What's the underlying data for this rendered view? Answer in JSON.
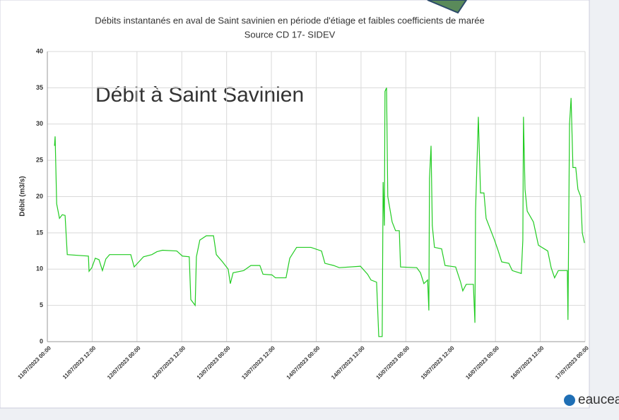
{
  "chart_data": {
    "type": "line",
    "title": "Débits instantanés en aval de Saint savinien en période d'étiage et faibles coefficients de marée",
    "subtitle": "Source CD 17- SIDEV",
    "annotation": "Débit à Saint Savinien",
    "ylabel": "Débit (m3/s)",
    "color": "#22cc22",
    "grid": true,
    "xlim": [
      "2023-07-11T00:00",
      "2023-07-17T00:00"
    ],
    "xticks": [
      {
        "value": "2023-07-11T00:00",
        "label": "11/07/2023 00:00"
      },
      {
        "value": "2023-07-11T12:00",
        "label": "11/07/2023 12:00"
      },
      {
        "value": "2023-07-12T00:00",
        "label": "12/07/2023 00:00"
      },
      {
        "value": "2023-07-12T12:00",
        "label": "12/07/2023 12:00"
      },
      {
        "value": "2023-07-13T00:00",
        "label": "13/07/2023 00:00"
      },
      {
        "value": "2023-07-13T12:00",
        "label": "13/07/2023 12:00"
      },
      {
        "value": "2023-07-14T00:00",
        "label": "14/07/2023 00:00"
      },
      {
        "value": "2023-07-14T12:00",
        "label": "14/07/2023 12:00"
      },
      {
        "value": "2023-07-15T00:00",
        "label": "15/07/2023 00:00"
      },
      {
        "value": "2023-07-15T12:00",
        "label": "15/07/2023 12:00"
      },
      {
        "value": "2023-07-16T00:00",
        "label": "16/07/2023 00:00"
      },
      {
        "value": "2023-07-16T12:00",
        "label": "16/07/2023 12:00"
      },
      {
        "value": "2023-07-17T00:00",
        "label": "17/07/2023 00:00"
      }
    ],
    "ylim": [
      0,
      40
    ],
    "yticks": [
      0,
      5,
      10,
      15,
      20,
      25,
      30,
      35,
      40
    ],
    "x": [
      "2023-07-11T01:55",
      "2023-07-11T02:05",
      "2023-07-11T02:30",
      "2023-07-11T03:15",
      "2023-07-11T04:00",
      "2023-07-11T04:45",
      "2023-07-11T05:20",
      "2023-07-11T11:00",
      "2023-07-11T11:10",
      "2023-07-11T11:55",
      "2023-07-11T12:50",
      "2023-07-11T13:50",
      "2023-07-11T14:45",
      "2023-07-11T15:40",
      "2023-07-11T16:40",
      "2023-07-11T22:20",
      "2023-07-11T23:15",
      "2023-07-12T01:45",
      "2023-07-12T04:00",
      "2023-07-12T05:20",
      "2023-07-12T06:50",
      "2023-07-12T10:40",
      "2023-07-12T12:10",
      "2023-07-12T14:00",
      "2023-07-12T14:25",
      "2023-07-12T15:35",
      "2023-07-12T15:55",
      "2023-07-12T16:50",
      "2023-07-12T18:35",
      "2023-07-12T20:30",
      "2023-07-12T21:15",
      "2023-07-12T22:55",
      "2023-07-13T00:25",
      "2023-07-13T01:00",
      "2023-07-13T01:45",
      "2023-07-13T04:35",
      "2023-07-13T06:30",
      "2023-07-13T08:55",
      "2023-07-13T09:45",
      "2023-07-13T12:10",
      "2023-07-13T13:05",
      "2023-07-13T15:55",
      "2023-07-13T16:55",
      "2023-07-13T18:45",
      "2023-07-13T22:35",
      "2023-07-14T01:25",
      "2023-07-14T02:20",
      "2023-07-14T04:40",
      "2023-07-14T06:10",
      "2023-07-14T11:50",
      "2023-07-14T13:45",
      "2023-07-14T14:40",
      "2023-07-14T16:10",
      "2023-07-14T16:45",
      "2023-07-14T17:40",
      "2023-07-14T17:55",
      "2023-07-14T18:15",
      "2023-07-14T18:25",
      "2023-07-14T18:50",
      "2023-07-14T19:10",
      "2023-07-14T20:20",
      "2023-07-14T21:15",
      "2023-07-14T22:15",
      "2023-07-14T22:35",
      "2023-07-15T02:55",
      "2023-07-15T03:55",
      "2023-07-15T04:50",
      "2023-07-15T05:50",
      "2023-07-15T06:10",
      "2023-07-15T06:20",
      "2023-07-15T06:45",
      "2023-07-15T07:05",
      "2023-07-15T07:40",
      "2023-07-15T09:35",
      "2023-07-15T10:30",
      "2023-07-15T13:20",
      "2023-07-15T14:40",
      "2023-07-15T15:15",
      "2023-07-15T16:10",
      "2023-07-15T18:05",
      "2023-07-15T18:30",
      "2023-07-15T18:40",
      "2023-07-15T19:25",
      "2023-07-15T20:00",
      "2023-07-15T20:55",
      "2023-07-15T21:30",
      "2023-07-15T23:45",
      "2023-07-16T00:45",
      "2023-07-16T01:40",
      "2023-07-16T03:35",
      "2023-07-16T04:30",
      "2023-07-16T06:55",
      "2023-07-16T07:20",
      "2023-07-16T07:30",
      "2023-07-16T07:55",
      "2023-07-16T08:30",
      "2023-07-16T10:10",
      "2023-07-16T11:30",
      "2023-07-16T14:00",
      "2023-07-16T14:55",
      "2023-07-16T15:50",
      "2023-07-16T16:50",
      "2023-07-16T19:15",
      "2023-07-16T19:25",
      "2023-07-16T19:50",
      "2023-07-16T20:15",
      "2023-07-16T20:45",
      "2023-07-16T21:30",
      "2023-07-16T22:05",
      "2023-07-16T22:50",
      "2023-07-16T23:15",
      "2023-07-16T23:50"
    ],
    "values": [
      27,
      28.3,
      19,
      17,
      17.5,
      17.4,
      12,
      11.8,
      9.7,
      10.2,
      11.5,
      11.3,
      9.8,
      11.4,
      12,
      12,
      10.3,
      11.7,
      12,
      12.4,
      12.6,
      12.5,
      11.8,
      11.7,
      5.8,
      5,
      11.7,
      14,
      14.6,
      14.6,
      12,
      11,
      10,
      8,
      9.5,
      9.8,
      10.5,
      10.5,
      9.3,
      9.2,
      8.8,
      8.8,
      11.5,
      13,
      13,
      12.5,
      10.8,
      10.5,
      10.2,
      10.4,
      9.3,
      8.5,
      8.2,
      0.7,
      0.7,
      22,
      16,
      34.5,
      35,
      20,
      16.5,
      15.3,
      15.3,
      10.3,
      10.2,
      9.5,
      8,
      8.5,
      4.3,
      22.5,
      27,
      16,
      13,
      12.8,
      10.5,
      10.3,
      8.2,
      7,
      7.9,
      7.9,
      2.6,
      18,
      31,
      20.5,
      20.5,
      17,
      14,
      12.5,
      11,
      10.8,
      9.8,
      9.4,
      14,
      31,
      21,
      18,
      16.5,
      13.3,
      12.5,
      10.2,
      8.8,
      9.8,
      9.8,
      3,
      30,
      33.6,
      24,
      24,
      21,
      20,
      15,
      13.6
    ]
  },
  "logo": "eaucea"
}
